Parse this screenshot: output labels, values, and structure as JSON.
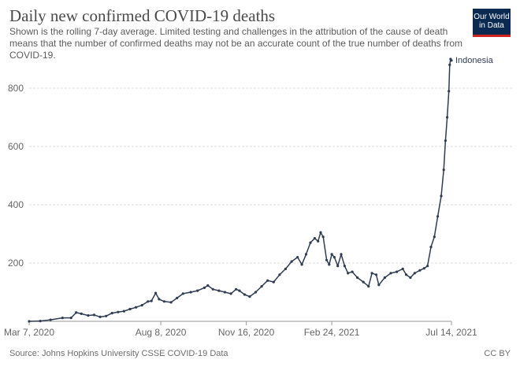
{
  "header": {
    "title": "Daily new confirmed COVID-19 deaths",
    "subtitle": "Shown is the rolling 7-day average. Limited testing and challenges in the attribution of the cause of death means that the number of confirmed deaths may not be an accurate count of the true number of deaths from COVID-19."
  },
  "logo": {
    "line1": "Our World",
    "line2": "in Data"
  },
  "footer": {
    "source": "Source: Johns Hopkins University CSSE COVID-19 Data",
    "license": "CC BY"
  },
  "colors": {
    "series": "#2f3c52",
    "grid": "#dddddd",
    "text": "#666666",
    "logo_bg": "#0b2a52",
    "logo_accent": "#ce261e"
  },
  "chart_data": {
    "type": "line",
    "title": "Daily new confirmed COVID-19 deaths",
    "xlabel": "",
    "ylabel": "",
    "ylim": [
      0,
      900
    ],
    "xlim": [
      "2020-03-07",
      "2021-07-14"
    ],
    "y_ticks": [
      200,
      400,
      600,
      800
    ],
    "x_ticks": [
      "Mar 7, 2020",
      "Aug 8, 2020",
      "Nov 16, 2020",
      "Feb 24, 2021",
      "Jul 14, 2021"
    ],
    "x_tick_dates": [
      "2020-03-07",
      "2020-08-08",
      "2020-11-16",
      "2021-02-24",
      "2021-07-14"
    ],
    "grid": "horizontal dashed",
    "series": [
      {
        "name": "Indonesia",
        "points": [
          [
            "2020-03-07",
            0
          ],
          [
            "2020-03-20",
            1
          ],
          [
            "2020-04-01",
            5
          ],
          [
            "2020-04-15",
            12
          ],
          [
            "2020-04-25",
            12
          ],
          [
            "2020-05-01",
            30
          ],
          [
            "2020-05-07",
            26
          ],
          [
            "2020-05-15",
            20
          ],
          [
            "2020-05-22",
            22
          ],
          [
            "2020-05-29",
            15
          ],
          [
            "2020-06-05",
            18
          ],
          [
            "2020-06-12",
            28
          ],
          [
            "2020-06-19",
            32
          ],
          [
            "2020-06-26",
            35
          ],
          [
            "2020-07-03",
            42
          ],
          [
            "2020-07-10",
            48
          ],
          [
            "2020-07-17",
            55
          ],
          [
            "2020-07-24",
            68
          ],
          [
            "2020-07-28",
            70
          ],
          [
            "2020-08-02",
            97
          ],
          [
            "2020-08-06",
            76
          ],
          [
            "2020-08-12",
            68
          ],
          [
            "2020-08-20",
            65
          ],
          [
            "2020-08-27",
            80
          ],
          [
            "2020-09-03",
            95
          ],
          [
            "2020-09-12",
            100
          ],
          [
            "2020-09-20",
            105
          ],
          [
            "2020-09-28",
            115
          ],
          [
            "2020-10-02",
            123
          ],
          [
            "2020-10-08",
            110
          ],
          [
            "2020-10-15",
            105
          ],
          [
            "2020-10-22",
            100
          ],
          [
            "2020-10-29",
            95
          ],
          [
            "2020-11-04",
            110
          ],
          [
            "2020-11-08",
            105
          ],
          [
            "2020-11-14",
            92
          ],
          [
            "2020-11-20",
            85
          ],
          [
            "2020-11-27",
            100
          ],
          [
            "2020-12-04",
            120
          ],
          [
            "2020-12-11",
            140
          ],
          [
            "2020-12-18",
            135
          ],
          [
            "2020-12-25",
            160
          ],
          [
            "2021-01-01",
            180
          ],
          [
            "2021-01-08",
            205
          ],
          [
            "2021-01-15",
            220
          ],
          [
            "2021-01-20",
            195
          ],
          [
            "2021-01-25",
            230
          ],
          [
            "2021-01-30",
            270
          ],
          [
            "2021-02-04",
            285
          ],
          [
            "2021-02-08",
            275
          ],
          [
            "2021-02-11",
            305
          ],
          [
            "2021-02-14",
            290
          ],
          [
            "2021-02-18",
            210
          ],
          [
            "2021-02-21",
            195
          ],
          [
            "2021-02-24",
            230
          ],
          [
            "2021-02-27",
            220
          ],
          [
            "2021-03-03",
            190
          ],
          [
            "2021-03-07",
            230
          ],
          [
            "2021-03-11",
            190
          ],
          [
            "2021-03-15",
            165
          ],
          [
            "2021-03-20",
            170
          ],
          [
            "2021-03-26",
            150
          ],
          [
            "2021-04-02",
            135
          ],
          [
            "2021-04-08",
            120
          ],
          [
            "2021-04-12",
            165
          ],
          [
            "2021-04-17",
            160
          ],
          [
            "2021-04-20",
            125
          ],
          [
            "2021-04-27",
            150
          ],
          [
            "2021-05-04",
            165
          ],
          [
            "2021-05-11",
            170
          ],
          [
            "2021-05-18",
            180
          ],
          [
            "2021-05-22",
            160
          ],
          [
            "2021-05-27",
            150
          ],
          [
            "2021-06-01",
            165
          ],
          [
            "2021-06-07",
            175
          ],
          [
            "2021-06-12",
            182
          ],
          [
            "2021-06-16",
            190
          ],
          [
            "2021-06-20",
            255
          ],
          [
            "2021-06-24",
            290
          ],
          [
            "2021-06-28",
            360
          ],
          [
            "2021-07-02",
            430
          ],
          [
            "2021-07-05",
            520
          ],
          [
            "2021-07-07",
            620
          ],
          [
            "2021-07-09",
            700
          ],
          [
            "2021-07-11",
            790
          ],
          [
            "2021-07-12",
            880
          ],
          [
            "2021-07-13",
            900
          ],
          [
            "2021-07-14",
            895
          ]
        ]
      }
    ]
  }
}
